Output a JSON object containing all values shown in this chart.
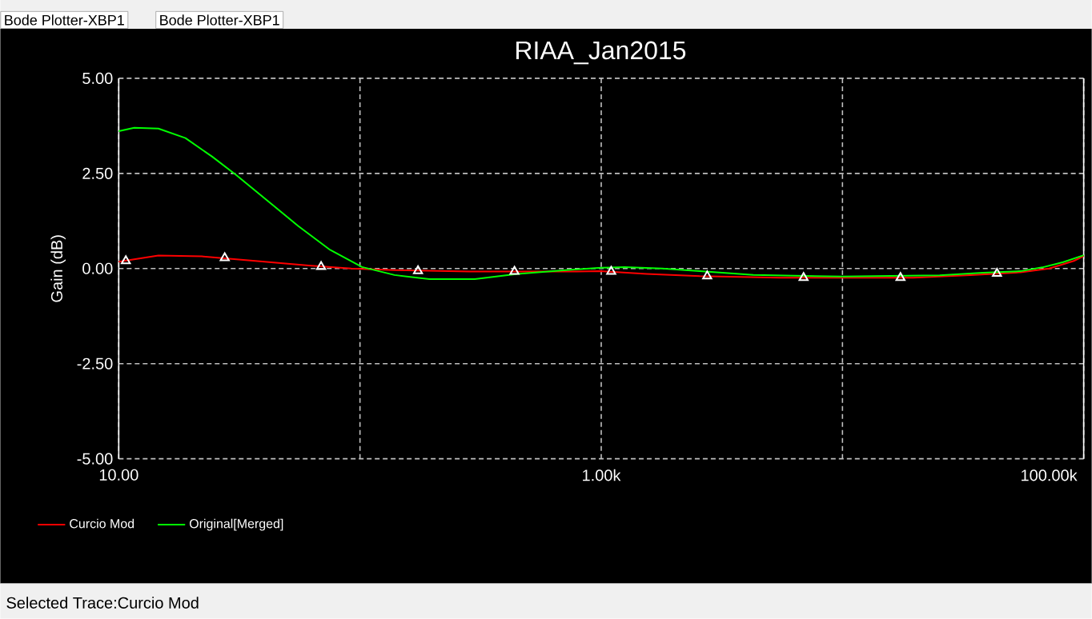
{
  "chart_data": {
    "type": "line",
    "title": "RIAA_Jan2015",
    "ylabel": "Gain (dB)",
    "annotations": [
      "Bode Plotter-XBP1",
      "Bode Plotter-XBP1",
      "Selected Trace:Curcio Mod"
    ],
    "log": "x",
    "grid": true,
    "legend": "bottom left",
    "line_style": "solid",
    "xlim": [
      10,
      100000
    ],
    "ylim": [
      -5,
      5
    ],
    "xticks": [
      {
        "value": 10,
        "label": "10.00"
      },
      {
        "value": 100,
        "label": null
      },
      {
        "value": 1000,
        "label": "1.00k"
      },
      {
        "value": 10000,
        "label": null
      },
      {
        "value": 100000,
        "label": "100.00k"
      }
    ],
    "yticks": [
      {
        "value": -5,
        "label": "-5.00"
      },
      {
        "value": -2.5,
        "label": "-2.50"
      },
      {
        "value": 0,
        "label": "0.00"
      },
      {
        "value": 2.5,
        "label": "2.50"
      },
      {
        "value": 5,
        "label": "5.00"
      }
    ],
    "series": [
      {
        "name": "Curcio Mod",
        "color": "#ff0000",
        "x": [
          10,
          14.6,
          22.1,
          36.8,
          61.3,
          92,
          139,
          285,
          790,
          1000,
          1540,
          2560,
          5500,
          19600,
          32600,
          54700,
          72000,
          91000,
          100000
        ],
        "values": [
          0.18,
          0.34,
          0.32,
          0.2,
          0.08,
          0.0,
          -0.04,
          -0.08,
          -0.08,
          -0.07,
          -0.14,
          -0.2,
          -0.24,
          -0.24,
          -0.18,
          -0.1,
          0.0,
          0.2,
          0.33
        ]
      },
      {
        "name": "Original[Merged]",
        "color": "#00ff00",
        "x": [
          10,
          11.6,
          14.6,
          18.9,
          24.4,
          30.8,
          40.7,
          55.4,
          75.2,
          102,
          139,
          194,
          299,
          450,
          713,
          1000,
          1250,
          1790,
          2560,
          4270,
          10000,
          25300,
          38400,
          54700,
          67300,
          82300,
          100000
        ],
        "values": [
          3.61,
          3.7,
          3.68,
          3.43,
          2.94,
          2.45,
          1.82,
          1.12,
          0.49,
          0.04,
          -0.17,
          -0.28,
          -0.28,
          -0.14,
          -0.04,
          0.02,
          0.04,
          0.0,
          -0.07,
          -0.17,
          -0.21,
          -0.18,
          -0.11,
          -0.07,
          0.03,
          0.17,
          0.35
        ]
      },
      {
        "type": "scatter",
        "marker": "triangle",
        "color": "#ffffff",
        "x": [
          10.7,
          27.5,
          69,
          174,
          437,
          1100,
          2750,
          6900,
          17400,
          43700
        ],
        "values": [
          0.2,
          0.28,
          0.05,
          -0.06,
          -0.08,
          -0.08,
          -0.2,
          -0.24,
          -0.24,
          -0.13
        ]
      }
    ]
  }
}
